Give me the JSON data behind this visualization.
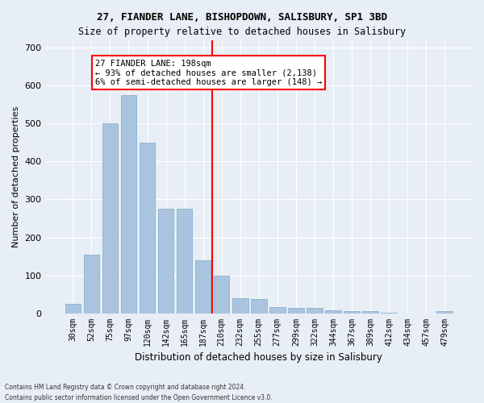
{
  "title1": "27, FIANDER LANE, BISHOPDOWN, SALISBURY, SP1 3BD",
  "title2": "Size of property relative to detached houses in Salisbury",
  "xlabel": "Distribution of detached houses by size in Salisbury",
  "ylabel": "Number of detached properties",
  "categories": [
    "30sqm",
    "52sqm",
    "75sqm",
    "97sqm",
    "120sqm",
    "142sqm",
    "165sqm",
    "187sqm",
    "210sqm",
    "232sqm",
    "255sqm",
    "277sqm",
    "299sqm",
    "322sqm",
    "344sqm",
    "367sqm",
    "389sqm",
    "412sqm",
    "434sqm",
    "457sqm",
    "479sqm"
  ],
  "values": [
    25,
    155,
    500,
    575,
    450,
    275,
    275,
    140,
    100,
    40,
    38,
    17,
    15,
    13,
    8,
    6,
    5,
    2,
    0,
    0,
    5
  ],
  "bar_color": "#aac4e0",
  "bar_edge_color": "#7aaac8",
  "vline_x": 8,
  "vline_color": "red",
  "annotation_title": "27 FIANDER LANE: 198sqm",
  "annotation_line1": "← 93% of detached houses are smaller (2,138)",
  "annotation_line2": "6% of semi-detached houses are larger (148) →",
  "annotation_box_color": "white",
  "annotation_box_edge": "red",
  "footnote1": "Contains HM Land Registry data © Crown copyright and database right 2024.",
  "footnote2": "Contains public sector information licensed under the Open Government Licence v3.0.",
  "ylim": [
    0,
    720
  ],
  "yticks": [
    0,
    100,
    200,
    300,
    400,
    500,
    600,
    700
  ],
  "bg_color": "#e8eef5",
  "grid_color": "white"
}
